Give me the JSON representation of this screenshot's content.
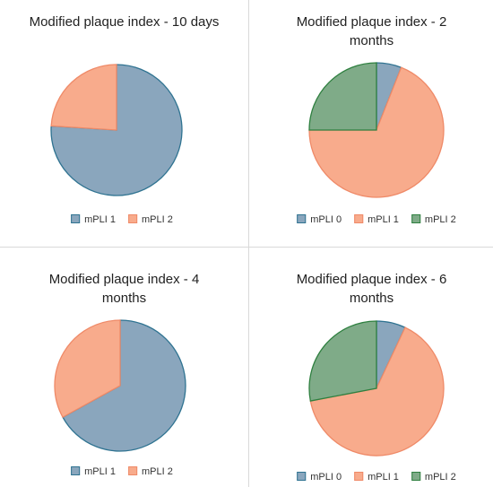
{
  "chart_data": [
    {
      "type": "pie",
      "title": "Modified plaque index - 10 days",
      "categories": [
        "mPLI 1",
        "mPLI 2"
      ],
      "values": [
        76,
        24
      ],
      "colors": [
        "#8aa6bd",
        "#f8ab8c"
      ],
      "edge_colors": [
        "#2f7391",
        "#ef8a68"
      ]
    },
    {
      "type": "pie",
      "title": "Modified plaque index - 2 months",
      "categories": [
        "mPLI 0",
        "mPLI 1",
        "mPLI 2"
      ],
      "values": [
        6,
        69,
        25
      ],
      "colors": [
        "#8aa6bd",
        "#f8ab8c",
        "#7fab88"
      ],
      "edge_colors": [
        "#2f7391",
        "#ef8a68",
        "#2f8040"
      ]
    },
    {
      "type": "pie",
      "title": "Modified plaque index - 4 months",
      "categories": [
        "mPLI 1",
        "mPLI 2"
      ],
      "values": [
        67,
        33
      ],
      "colors": [
        "#8aa6bd",
        "#f8ab8c"
      ],
      "edge_colors": [
        "#2f7391",
        "#ef8a68"
      ]
    },
    {
      "type": "pie",
      "title": "Modified plaque index - 6 months",
      "categories": [
        "mPLI 0",
        "mPLI 1",
        "mPLI 2"
      ],
      "values": [
        7,
        65,
        28
      ],
      "colors": [
        "#8aa6bd",
        "#f8ab8c",
        "#7fab88"
      ],
      "edge_colors": [
        "#2f7391",
        "#ef8a68",
        "#2f8040"
      ]
    }
  ]
}
